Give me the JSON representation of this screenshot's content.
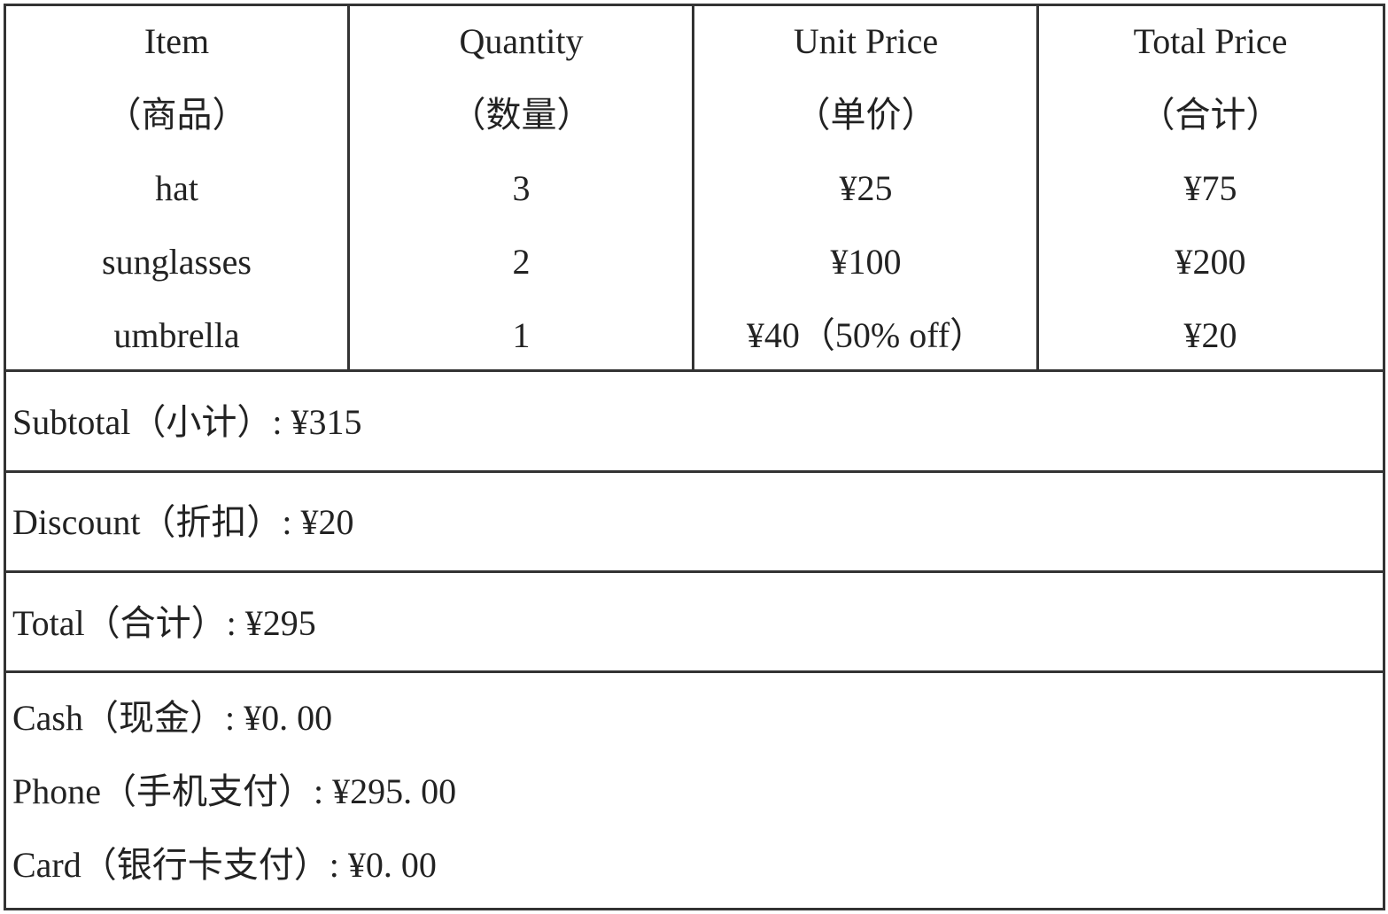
{
  "table": {
    "headers": [
      {
        "en": "Item",
        "zh": "（商品）"
      },
      {
        "en": "Quantity",
        "zh": "（数量）"
      },
      {
        "en": "Unit Price",
        "zh": "（单价）"
      },
      {
        "en": "Total Price",
        "zh": "（合计）"
      }
    ],
    "rows": [
      [
        "hat",
        "3",
        "¥25",
        "¥75"
      ],
      [
        "sunglasses",
        "2",
        "¥100",
        "¥200"
      ],
      [
        "umbrella",
        "1",
        "¥40（50% off）",
        "¥20"
      ]
    ]
  },
  "summary": {
    "subtotal": "Subtotal（小计）: ¥315",
    "discount": "Discount（折扣）: ¥20",
    "total": "Total（合计）: ¥295"
  },
  "payments": [
    "Cash（现金）: ¥0. 00",
    "Phone（手机支付）: ¥295. 00",
    "Card（银行卡支付）: ¥0. 00"
  ]
}
